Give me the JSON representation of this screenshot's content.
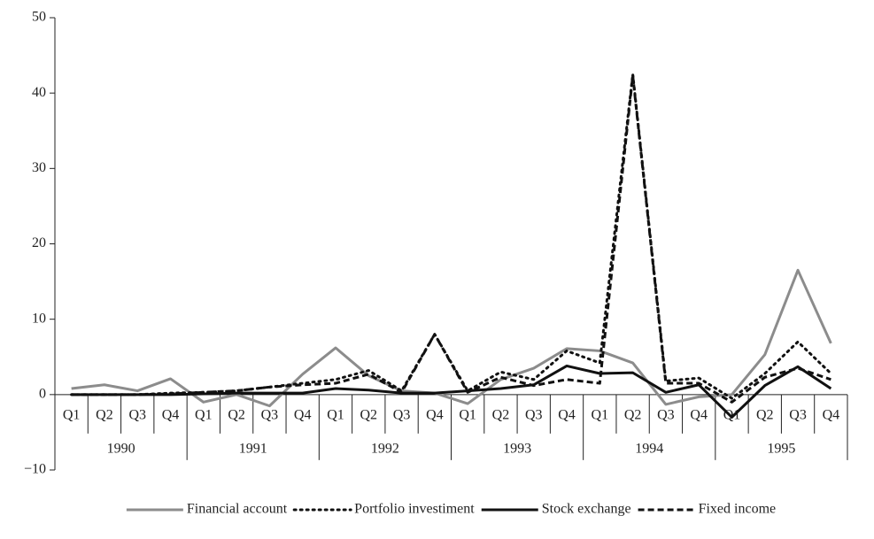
{
  "chart_data": {
    "type": "line",
    "categories": [
      "Q1",
      "Q2",
      "Q3",
      "Q4",
      "Q1",
      "Q2",
      "Q3",
      "Q4",
      "Q1",
      "Q2",
      "Q3",
      "Q4",
      "Q1",
      "Q2",
      "Q3",
      "Q4",
      "Q1",
      "Q2",
      "Q3",
      "Q4",
      "Q1",
      "Q2",
      "Q3",
      "Q4"
    ],
    "groups": [
      "1990",
      "1991",
      "1992",
      "1993",
      "1994",
      "1995"
    ],
    "ylim": [
      -10,
      50
    ],
    "yticks": [
      {
        "value": -10,
        "label": "−10"
      },
      0,
      10,
      20,
      30,
      40,
      50
    ],
    "legend": "bottom",
    "series": [
      {
        "name": "Financial account",
        "color": "#8c8c8c",
        "dash": "solid",
        "values": [
          0.8,
          1.3,
          0.5,
          2.1,
          -1.0,
          0.0,
          -1.5,
          2.7,
          6.2,
          2.5,
          0.5,
          0.2,
          -1.2,
          2.0,
          3.5,
          6.1,
          5.8,
          4.2,
          -1.3,
          -0.3,
          0.0,
          5.3,
          16.5,
          6.8
        ]
      },
      {
        "name": "Portfolio investiment",
        "color": "#111111",
        "dash": "dotted",
        "values": [
          0.0,
          0.0,
          0.0,
          0.2,
          0.3,
          0.5,
          1.0,
          1.5,
          2.0,
          3.2,
          0.5,
          8.0,
          0.5,
          3.0,
          2.0,
          5.8,
          4.2,
          42.5,
          1.8,
          2.2,
          -0.5,
          2.8,
          7.0,
          2.8
        ]
      },
      {
        "name": "Stock exchange",
        "color": "#111111",
        "dash": "solid",
        "values": [
          0.0,
          0.0,
          0.0,
          0.0,
          0.1,
          0.2,
          0.2,
          0.2,
          0.8,
          0.6,
          0.2,
          0.2,
          0.5,
          0.8,
          1.3,
          3.8,
          2.8,
          2.9,
          0.3,
          1.3,
          -3.0,
          1.2,
          3.7,
          0.8
        ]
      },
      {
        "name": "Fixed income",
        "color": "#111111",
        "dash": "dashed",
        "values": [
          0.0,
          0.0,
          0.0,
          0.1,
          0.3,
          0.5,
          1.0,
          1.3,
          1.5,
          2.7,
          0.3,
          8.0,
          0.3,
          2.3,
          1.2,
          2.0,
          1.5,
          42.3,
          1.5,
          1.5,
          -1.0,
          2.3,
          3.5,
          2.0
        ]
      }
    ]
  }
}
